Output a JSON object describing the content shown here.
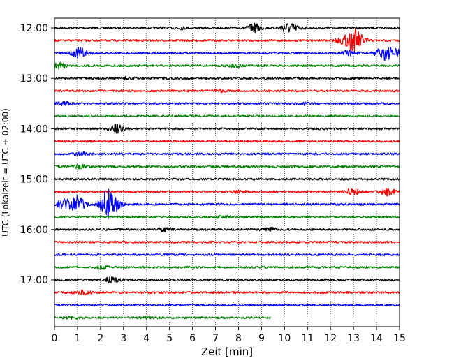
{
  "chart_data": {
    "type": "line",
    "title": "",
    "xlabel": "Zeit  [min]",
    "ylabel": "UTC (Lokalzeit = UTC + 02:00)",
    "xlim": [
      0,
      15
    ],
    "x_ticks": [
      "0",
      "1",
      "2",
      "3",
      "4",
      "5",
      "6",
      "7",
      "8",
      "9",
      "10",
      "11",
      "12",
      "13",
      "14",
      "15"
    ],
    "y_ticks": [
      "12:00",
      "13:00",
      "14:00",
      "15:00",
      "16:00",
      "17:00"
    ],
    "grid": "vertical dotted",
    "trace_colors": [
      "#000000",
      "#ff0000",
      "#0000ff",
      "#008000"
    ],
    "traces": [
      {
        "start": "12:00",
        "color": "#000000",
        "x_end": 15,
        "events": [
          [
            5.5,
            0.15
          ],
          [
            8.7,
            0.6
          ],
          [
            10.1,
            0.7
          ],
          [
            10.5,
            0.25
          ]
        ]
      },
      {
        "start": "12:15",
        "color": "#ff0000",
        "x_end": 15,
        "events": [
          [
            12.5,
            0.4
          ],
          [
            13.0,
            1.5
          ],
          [
            13.3,
            0.5
          ]
        ]
      },
      {
        "start": "12:30",
        "color": "#0000ff",
        "x_end": 15,
        "events": [
          [
            1.1,
            0.8
          ],
          [
            12.8,
            0.35
          ],
          [
            14.3,
            1.0
          ],
          [
            14.8,
            0.6
          ]
        ]
      },
      {
        "start": "12:45",
        "color": "#008000",
        "x_end": 15,
        "events": [
          [
            0.2,
            0.4
          ],
          [
            7.8,
            0.2
          ]
        ]
      },
      {
        "start": "13:00",
        "color": "#000000",
        "x_end": 15,
        "events": [
          [
            3.2,
            0.15
          ]
        ]
      },
      {
        "start": "13:15",
        "color": "#ff0000",
        "x_end": 15,
        "events": [
          [
            7.2,
            0.15
          ]
        ]
      },
      {
        "start": "13:30",
        "color": "#0000ff",
        "x_end": 15,
        "events": [
          [
            0.4,
            0.2
          ],
          [
            10.8,
            0.15
          ]
        ]
      },
      {
        "start": "13:45",
        "color": "#008000",
        "x_end": 15,
        "events": []
      },
      {
        "start": "14:00",
        "color": "#000000",
        "x_end": 15,
        "events": [
          [
            2.7,
            0.6
          ]
        ]
      },
      {
        "start": "14:15",
        "color": "#ff0000",
        "x_end": 15,
        "events": []
      },
      {
        "start": "14:30",
        "color": "#0000ff",
        "x_end": 15,
        "events": [
          [
            1.2,
            0.2
          ]
        ]
      },
      {
        "start": "14:45",
        "color": "#008000",
        "x_end": 15,
        "events": [
          [
            1.1,
            0.3
          ]
        ]
      },
      {
        "start": "15:00",
        "color": "#000000",
        "x_end": 15,
        "events": []
      },
      {
        "start": "15:15",
        "color": "#ff0000",
        "x_end": 15,
        "events": [
          [
            8.0,
            0.15
          ],
          [
            13.0,
            0.5
          ],
          [
            14.5,
            0.55
          ]
        ]
      },
      {
        "start": "15:30",
        "color": "#0000ff",
        "x_end": 15,
        "events": [
          [
            0.4,
            0.8
          ],
          [
            1.0,
            1.2
          ],
          [
            2.3,
            2.0
          ],
          [
            2.6,
            0.8
          ]
        ]
      },
      {
        "start": "15:45",
        "color": "#008000",
        "x_end": 15,
        "events": [
          [
            7.3,
            0.15
          ]
        ]
      },
      {
        "start": "16:00",
        "color": "#000000",
        "x_end": 15,
        "events": [
          [
            4.8,
            0.3
          ],
          [
            9.3,
            0.3
          ]
        ]
      },
      {
        "start": "16:15",
        "color": "#ff0000",
        "x_end": 15,
        "events": []
      },
      {
        "start": "16:30",
        "color": "#0000ff",
        "x_end": 15,
        "events": []
      },
      {
        "start": "16:45",
        "color": "#008000",
        "x_end": 15,
        "events": [
          [
            2.1,
            0.2
          ]
        ]
      },
      {
        "start": "17:00",
        "color": "#000000",
        "x_end": 15,
        "events": [
          [
            2.5,
            0.45
          ]
        ]
      },
      {
        "start": "17:15",
        "color": "#ff0000",
        "x_end": 15,
        "events": [
          [
            1.3,
            0.3
          ]
        ]
      },
      {
        "start": "17:30",
        "color": "#0000ff",
        "x_end": 15,
        "events": []
      },
      {
        "start": "17:45",
        "color": "#008000",
        "x_end": 9.4,
        "events": [
          [
            0.8,
            0.15
          ],
          [
            4.0,
            0.1
          ]
        ]
      }
    ]
  }
}
